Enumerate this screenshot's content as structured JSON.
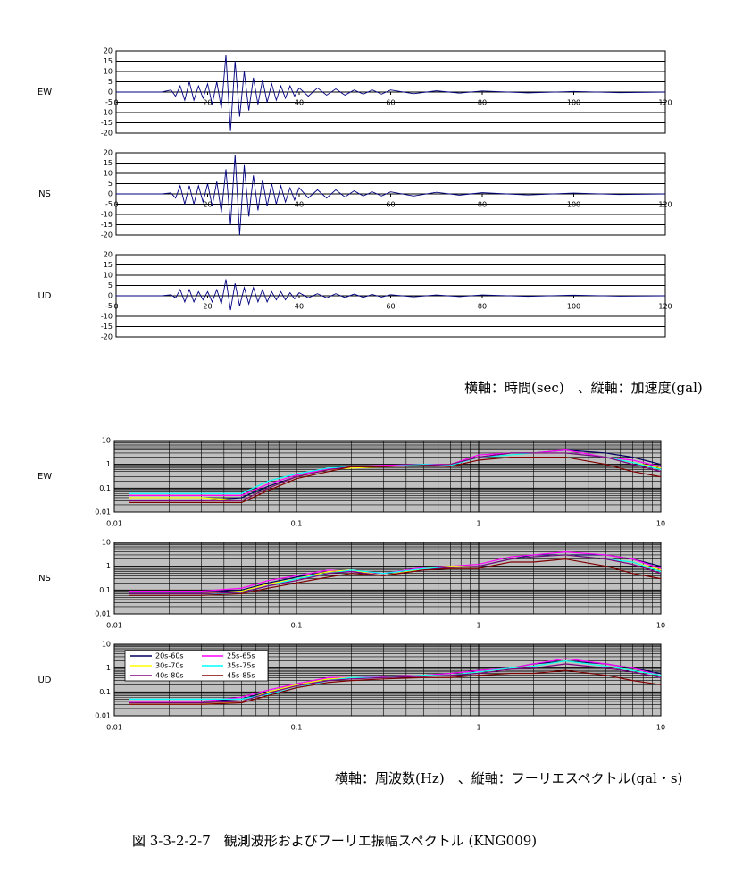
{
  "chart_data": [
    {
      "type": "line",
      "label": "EW",
      "x": [
        0,
        10,
        12,
        13,
        14,
        15,
        16,
        17,
        18,
        19,
        20,
        21,
        22,
        23,
        24,
        25,
        26,
        27,
        28,
        29,
        30,
        31,
        32,
        33,
        34,
        35,
        36,
        37,
        38,
        39,
        40,
        42,
        44,
        46,
        48,
        50,
        52,
        54,
        56,
        58,
        60,
        65,
        70,
        75,
        80,
        90,
        100,
        110,
        120
      ],
      "series": [
        {
          "color": "#000080",
          "values": [
            0,
            0,
            1,
            -2,
            3,
            -4,
            5,
            -4,
            3,
            -3,
            4,
            -6,
            5,
            -8,
            18,
            -19,
            15,
            -12,
            10,
            -9,
            7,
            -6,
            6,
            -5,
            4,
            -4,
            3,
            -3,
            3,
            -2,
            2,
            -2,
            2,
            -1.5,
            1.5,
            -1.5,
            1,
            -1,
            1,
            -1,
            1,
            -0.8,
            0.6,
            -0.5,
            0.5,
            -0.4,
            0.3,
            -0.3,
            0
          ]
        }
      ],
      "xlim": [
        0,
        120
      ],
      "ylim": [
        -20,
        20
      ],
      "xticks": [
        0,
        20,
        40,
        60,
        80,
        100,
        120
      ],
      "yticks": [
        20,
        15,
        10,
        5,
        0,
        -5,
        -10,
        -15,
        -20
      ],
      "grid": true
    },
    {
      "type": "line",
      "label": "NS",
      "x": [
        0,
        10,
        12,
        13,
        14,
        15,
        16,
        17,
        18,
        19,
        20,
        21,
        22,
        23,
        24,
        25,
        26,
        27,
        28,
        29,
        30,
        31,
        32,
        33,
        34,
        35,
        36,
        37,
        38,
        39,
        40,
        42,
        44,
        46,
        48,
        50,
        52,
        54,
        56,
        58,
        60,
        65,
        70,
        75,
        80,
        90,
        100,
        110,
        120
      ],
      "series": [
        {
          "color": "#000080",
          "values": [
            0,
            0,
            0.5,
            -2,
            4,
            -5,
            4,
            -5,
            4,
            -4,
            5,
            -6,
            6,
            -9,
            12,
            -15,
            19,
            -20,
            14,
            -11,
            9,
            -8,
            7,
            -6,
            5,
            -5,
            4,
            -4,
            3,
            -3,
            3,
            -2,
            2,
            -2,
            2,
            -1.5,
            1.5,
            -1,
            1,
            -1,
            1,
            -1,
            0.8,
            -0.6,
            0.6,
            -0.5,
            0.4,
            -0.3,
            0
          ]
        }
      ],
      "xlim": [
        0,
        120
      ],
      "ylim": [
        -20,
        20
      ],
      "xticks": [
        0,
        20,
        40,
        60,
        80,
        100,
        120
      ],
      "yticks": [
        20,
        15,
        10,
        5,
        0,
        -5,
        -10,
        -15,
        -20
      ],
      "grid": true
    },
    {
      "type": "line",
      "label": "UD",
      "x": [
        0,
        10,
        12,
        13,
        14,
        15,
        16,
        17,
        18,
        19,
        20,
        21,
        22,
        23,
        24,
        25,
        26,
        27,
        28,
        29,
        30,
        31,
        32,
        33,
        34,
        35,
        36,
        37,
        38,
        39,
        40,
        42,
        44,
        46,
        48,
        50,
        52,
        54,
        56,
        58,
        60,
        65,
        70,
        75,
        80,
        90,
        100,
        110,
        120
      ],
      "series": [
        {
          "color": "#000080",
          "values": [
            0,
            0,
            0.5,
            -1,
            3,
            -3,
            3,
            -3,
            2,
            -2,
            2,
            -3,
            3,
            -4,
            8,
            -7,
            6,
            -5,
            4,
            -4,
            4,
            -3,
            3,
            -3,
            2,
            -2,
            2,
            -2,
            1.5,
            -1.5,
            1.5,
            -1,
            1,
            -1,
            1,
            -0.8,
            0.8,
            -0.7,
            0.6,
            -0.6,
            0.5,
            -0.5,
            0.4,
            -0.4,
            0.4,
            -0.3,
            0.3,
            -0.2,
            0
          ]
        }
      ],
      "xlim": [
        0,
        120
      ],
      "ylim": [
        -20,
        20
      ],
      "xticks": [
        0,
        20,
        40,
        60,
        80,
        100,
        120
      ],
      "yticks": [
        20,
        15,
        10,
        5,
        0,
        -5,
        -10,
        -15,
        -20
      ],
      "grid": true
    },
    {
      "type": "line",
      "label": "EW",
      "xscale": "log",
      "yscale": "log",
      "background": "#c0c0c0",
      "x": [
        0.012,
        0.02,
        0.03,
        0.05,
        0.07,
        0.1,
        0.15,
        0.2,
        0.3,
        0.5,
        0.7,
        1,
        1.5,
        2,
        3,
        5,
        7,
        10
      ],
      "series": [
        {
          "color": "#000060",
          "values": [
            0.03,
            0.03,
            0.03,
            0.04,
            0.12,
            0.3,
            0.6,
            0.8,
            0.8,
            0.9,
            1,
            2,
            3,
            3,
            4,
            3,
            2,
            1
          ]
        },
        {
          "color": "#ff00ff",
          "values": [
            0.05,
            0.05,
            0.05,
            0.05,
            0.15,
            0.35,
            0.65,
            0.8,
            0.9,
            1,
            1,
            2.5,
            3,
            3,
            4,
            2,
            1.5,
            0.8
          ]
        },
        {
          "color": "#ffff00",
          "values": [
            0.04,
            0.04,
            0.04,
            0.03,
            0.1,
            0.3,
            0.6,
            0.7,
            0.8,
            0.9,
            1,
            2,
            2.5,
            3,
            3,
            2,
            1.2,
            0.7
          ]
        },
        {
          "color": "#00ffff",
          "values": [
            0.06,
            0.06,
            0.06,
            0.06,
            0.2,
            0.4,
            0.7,
            0.8,
            0.8,
            1,
            0.9,
            2,
            2.5,
            3,
            3,
            2,
            1.2,
            0.6
          ]
        },
        {
          "color": "#800080",
          "values": [
            0.03,
            0.03,
            0.03,
            0.03,
            0.1,
            0.3,
            0.6,
            0.8,
            0.8,
            0.9,
            1,
            2,
            3,
            3,
            3,
            2,
            1,
            0.5
          ]
        },
        {
          "color": "#800000",
          "values": [
            0.025,
            0.025,
            0.025,
            0.025,
            0.08,
            0.25,
            0.5,
            0.8,
            0.8,
            0.9,
            0.8,
            1.5,
            2,
            2,
            2,
            1,
            0.5,
            0.3
          ]
        }
      ],
      "xlim": [
        0.01,
        10
      ],
      "ylim": [
        0.01,
        10
      ],
      "xticks": [
        0.01,
        0.1,
        1,
        10
      ],
      "yticks": [
        10,
        1,
        0.1,
        0.01
      ],
      "grid": true
    },
    {
      "type": "line",
      "label": "NS",
      "xscale": "log",
      "yscale": "log",
      "background": "#c0c0c0",
      "x": [
        0.012,
        0.02,
        0.03,
        0.05,
        0.07,
        0.1,
        0.15,
        0.2,
        0.3,
        0.5,
        0.7,
        1,
        1.5,
        2,
        3,
        5,
        7,
        10
      ],
      "series": [
        {
          "color": "#000060",
          "values": [
            0.08,
            0.08,
            0.08,
            0.1,
            0.2,
            0.35,
            0.6,
            0.6,
            0.4,
            0.8,
            1,
            1,
            2,
            3,
            3,
            3,
            2,
            1
          ]
        },
        {
          "color": "#ff00ff",
          "values": [
            0.09,
            0.09,
            0.09,
            0.12,
            0.25,
            0.4,
            0.7,
            0.6,
            0.5,
            0.9,
            1,
            1.2,
            2.5,
            3,
            4,
            3,
            2,
            0.8
          ]
        },
        {
          "color": "#ffff00",
          "values": [
            0.07,
            0.07,
            0.07,
            0.09,
            0.18,
            0.3,
            0.6,
            0.7,
            0.4,
            0.8,
            1,
            1,
            2,
            2.5,
            3,
            2,
            1.5,
            0.7
          ]
        },
        {
          "color": "#00ffff",
          "values": [
            0.06,
            0.06,
            0.06,
            0.08,
            0.15,
            0.3,
            0.5,
            0.7,
            0.5,
            0.8,
            0.9,
            1,
            2,
            2.5,
            3,
            2,
            1.5,
            0.6
          ]
        },
        {
          "color": "#800080",
          "values": [
            0.07,
            0.07,
            0.07,
            0.08,
            0.15,
            0.25,
            0.5,
            0.6,
            0.4,
            0.7,
            0.9,
            1,
            2,
            2.5,
            3,
            2,
            1.2,
            0.5
          ]
        },
        {
          "color": "#800000",
          "values": [
            0.06,
            0.06,
            0.06,
            0.07,
            0.12,
            0.2,
            0.35,
            0.5,
            0.4,
            0.7,
            0.8,
            0.8,
            1.5,
            1.5,
            2,
            1,
            0.5,
            0.3
          ]
        }
      ],
      "xlim": [
        0.01,
        10
      ],
      "ylim": [
        0.01,
        10
      ],
      "xticks": [
        0.01,
        0.1,
        1,
        10
      ],
      "yticks": [
        10,
        1,
        0.1,
        0.01
      ],
      "grid": true
    },
    {
      "type": "line",
      "label": "UD",
      "xscale": "log",
      "yscale": "log",
      "background": "#c0c0c0",
      "legend": "upper left",
      "x": [
        0.012,
        0.02,
        0.03,
        0.05,
        0.07,
        0.1,
        0.15,
        0.2,
        0.3,
        0.5,
        0.7,
        1,
        1.5,
        2,
        3,
        5,
        7,
        10
      ],
      "series": [
        {
          "name": "20s-60s",
          "color": "#000060",
          "values": [
            0.04,
            0.04,
            0.04,
            0.05,
            0.1,
            0.2,
            0.35,
            0.4,
            0.4,
            0.5,
            0.6,
            0.8,
            1,
            1.5,
            2,
            1.5,
            1,
            0.6
          ]
        },
        {
          "name": "25s-65s",
          "color": "#ff00ff",
          "values": [
            0.04,
            0.04,
            0.04,
            0.06,
            0.12,
            0.22,
            0.4,
            0.4,
            0.45,
            0.5,
            0.6,
            0.8,
            1,
            1.5,
            2.5,
            1.5,
            1,
            0.5
          ]
        },
        {
          "name": "30s-70s",
          "color": "#ffff00",
          "values": [
            0.03,
            0.03,
            0.03,
            0.04,
            0.1,
            0.2,
            0.35,
            0.4,
            0.4,
            0.5,
            0.5,
            0.7,
            1,
            1.2,
            2,
            1.2,
            0.8,
            0.5
          ]
        },
        {
          "name": "35s-75s",
          "color": "#00ffff",
          "values": [
            0.05,
            0.05,
            0.05,
            0.05,
            0.08,
            0.15,
            0.3,
            0.4,
            0.4,
            0.5,
            0.5,
            0.7,
            1,
            1.2,
            2,
            1.2,
            0.8,
            0.5
          ]
        },
        {
          "name": "40s-80s",
          "color": "#800080",
          "values": [
            0.035,
            0.035,
            0.035,
            0.04,
            0.09,
            0.18,
            0.3,
            0.35,
            0.4,
            0.45,
            0.5,
            0.6,
            0.9,
            1,
            1.5,
            1,
            0.7,
            0.4
          ]
        },
        {
          "name": "45s-85s",
          "color": "#800000",
          "values": [
            0.03,
            0.03,
            0.03,
            0.035,
            0.07,
            0.15,
            0.25,
            0.3,
            0.35,
            0.4,
            0.4,
            0.5,
            0.6,
            0.6,
            0.8,
            0.5,
            0.3,
            0.2
          ]
        }
      ],
      "xlim": [
        0.01,
        10
      ],
      "ylim": [
        0.01,
        10
      ],
      "xticks": [
        0.01,
        0.1,
        1,
        10
      ],
      "yticks": [
        10,
        1,
        0.1,
        0.01
      ],
      "grid": true
    }
  ],
  "notes": {
    "time_axis": "横軸：時間(sec)　、縦軸：加速度(gal)",
    "freq_axis": "横軸：周波数(Hz)　、縦軸：フーリエスペクトル(gal・s)",
    "caption": "図 3-3-2-2-7　観測波形およびフーリエ振幅スペクトル (KNG009)"
  }
}
